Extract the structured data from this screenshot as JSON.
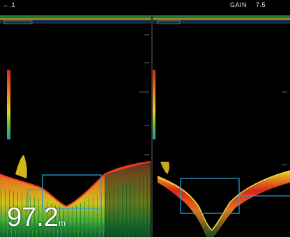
{
  "status_bar": {
    "mode_indicator": "←.1",
    "gain_label": "GAIN",
    "gain_value": "7.5"
  },
  "depth_readout": {
    "value": "97.2",
    "unit": "m"
  },
  "panels": [
    {
      "name": "left-sonar-panel"
    },
    {
      "name": "right-sonar-panel"
    }
  ],
  "colors": {
    "background": "#000000",
    "frame_box": "#2f9bd6",
    "echo_strong": "#d8261a",
    "echo_mid": "#e8c91f",
    "echo_weak": "#2fae3a"
  }
}
